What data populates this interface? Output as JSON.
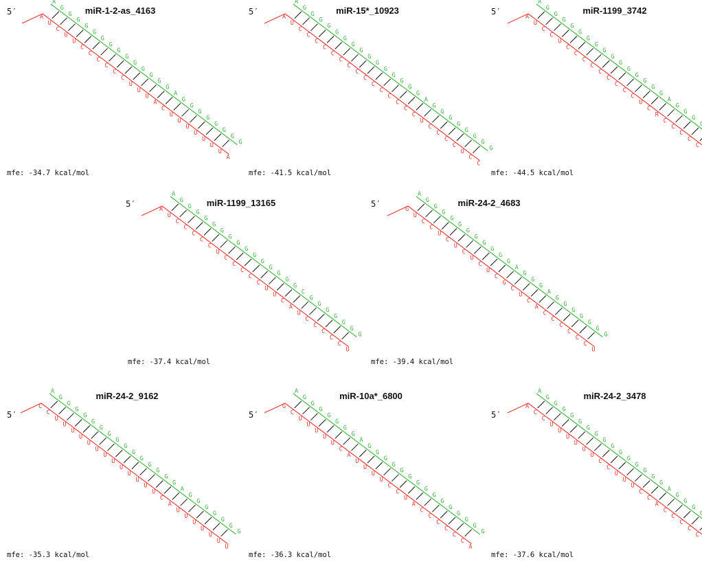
{
  "colors": {
    "mirna": "#e8362e",
    "target": "#39b53a",
    "bond": "#111111"
  },
  "duplexes": [
    {
      "title": "miR-1-2-as_4163",
      "five_prime": "5′",
      "mfe": "mfe: -34.7 kcal/mol",
      "mirna": [
        "A",
        "U",
        "C",
        "U",
        "U",
        "C",
        "C",
        "C",
        "C",
        "C",
        "C",
        "U",
        "U",
        "U",
        "A",
        "C",
        "U",
        "U",
        "U",
        "U",
        "U",
        "U",
        "U",
        "A"
      ],
      "target": [
        "A",
        "G",
        "G",
        "G",
        "G",
        "G",
        "G",
        "G",
        "G",
        "G",
        "G",
        "G",
        "G",
        "G",
        "G",
        "A",
        "G",
        "G",
        "G",
        "G",
        "G",
        "G",
        "G",
        "G"
      ]
    },
    {
      "title": "miR-15*_10923",
      "five_prime": "5′",
      "mfe": "mfe: -41.5 kcal/mol",
      "mirna": [
        "A",
        "U",
        "C",
        "C",
        "C",
        "C",
        "C",
        "C",
        "C",
        "C",
        "C",
        "C",
        "C",
        "C",
        "C",
        "C",
        "C",
        "U",
        "C",
        "C",
        "C",
        "C",
        "U",
        "C",
        "C"
      ],
      "target": [
        "A",
        "G",
        "G",
        "G",
        "G",
        "G",
        "G",
        "G",
        "G",
        "G",
        "G",
        "G",
        "G",
        "G",
        "G",
        "G",
        "A",
        "G",
        "G",
        "G",
        "G",
        "G",
        "G",
        "G",
        "G"
      ]
    },
    {
      "title": "miR-1199_3742",
      "five_prime": "5′",
      "mfe": "mfe: -44.5 kcal/mol",
      "mirna": [
        "A",
        "U",
        "C",
        "C",
        "U",
        "C",
        "C",
        "C",
        "C",
        "C",
        "C",
        "C",
        "C",
        "C",
        "U",
        "C",
        "R",
        "C",
        "C",
        "C",
        "C",
        "C",
        "C",
        "C",
        "C",
        "U"
      ],
      "target": [
        "A",
        "G",
        "G",
        "G",
        "G",
        "G",
        "G",
        "G",
        "G",
        "G",
        "G",
        "G",
        "G",
        "G",
        "G",
        "G",
        "A",
        "G",
        "G",
        "G",
        "G",
        "G",
        "G",
        "G",
        "G",
        "G"
      ]
    },
    {
      "title": "miR-1199_13165",
      "five_prime": "5′",
      "mfe": "mfe: -37.4 kcal/mol",
      "mirna": [
        "A",
        "U",
        "C",
        "C",
        "C",
        "C",
        "C",
        "U",
        "C",
        "C",
        "C",
        "C",
        "C",
        "U",
        "U",
        "C",
        "A",
        "U",
        "C",
        "C",
        "C",
        "C",
        "C",
        "U"
      ],
      "target": [
        "A",
        "G",
        "G",
        "G",
        "G",
        "G",
        "G",
        "G",
        "G",
        "G",
        "G",
        "G",
        "G",
        "G",
        "G",
        "G",
        "C",
        "G",
        "G",
        "G",
        "G",
        "G",
        "G",
        "G"
      ]
    },
    {
      "title": "miR-24-2_4683",
      "five_prime": "5′",
      "mfe": "mfe: -39.4 kcal/mol",
      "mirna": [
        "G",
        "U",
        "C",
        "C",
        "U",
        "C",
        "U",
        "C",
        "U",
        "C",
        "U",
        "C",
        "G",
        "C",
        "U",
        "C",
        "A",
        "C",
        "C",
        "C",
        "C",
        "C",
        "C",
        "U"
      ],
      "target": [
        "A",
        "G",
        "G",
        "G",
        "G",
        "G",
        "G",
        "G",
        "G",
        "G",
        "G",
        "G",
        "A",
        "G",
        "G",
        "G",
        "A",
        "G",
        "G",
        "G",
        "G",
        "G",
        "G",
        "G"
      ]
    },
    {
      "title": "miR-24-2_9162",
      "five_prime": "5′",
      "mfe": "mfe: -35.3 kcal/mol",
      "mirna": [
        "C",
        "C",
        "U",
        "U",
        "U",
        "U",
        "U",
        "U",
        "U",
        "U",
        "U",
        "U",
        "U",
        "U",
        "U",
        "C",
        "A",
        "U",
        "U",
        "U",
        "U",
        "U",
        "U",
        "U"
      ],
      "target": [
        "A",
        "G",
        "G",
        "G",
        "G",
        "G",
        "G",
        "G",
        "G",
        "G",
        "G",
        "G",
        "G",
        "G",
        "G",
        "G",
        "A",
        "G",
        "G",
        "G",
        "G",
        "G",
        "G",
        "G"
      ]
    },
    {
      "title": "miR-10a*_6800",
      "five_prime": "5′",
      "mfe": "mfe: -36.3 kcal/mol",
      "mirna": [
        "G",
        "C",
        "U",
        "U",
        "U",
        "U",
        "U",
        "C",
        "A",
        "U",
        "U",
        "U",
        "U",
        "C",
        "C",
        "U",
        "A",
        "C",
        "C",
        "C",
        "C",
        "C",
        "C",
        "A"
      ],
      "target": [
        "A",
        "G",
        "G",
        "G",
        "G",
        "G",
        "G",
        "G",
        "A",
        "G",
        "G",
        "G",
        "G",
        "G",
        "G",
        "G",
        "G",
        "G",
        "G",
        "G",
        "G",
        "G",
        "G",
        "G"
      ]
    },
    {
      "title": "miR-24-2_3478",
      "five_prime": "5′",
      "mfe": "mfe: -37.6 kcal/mol",
      "mirna": [
        "A",
        "C",
        "C",
        "U",
        "U",
        "U",
        "U",
        "U",
        "U",
        "C",
        "C",
        "U",
        "U",
        "U",
        "C",
        "C",
        "A",
        "C",
        "C",
        "C",
        "C",
        "C",
        "U",
        "U"
      ],
      "target": [
        "A",
        "G",
        "G",
        "G",
        "G",
        "G",
        "G",
        "G",
        "G",
        "G",
        "G",
        "G",
        "G",
        "G",
        "G",
        "G",
        "A",
        "G",
        "G",
        "G",
        "G",
        "G",
        "G",
        "G"
      ]
    }
  ]
}
